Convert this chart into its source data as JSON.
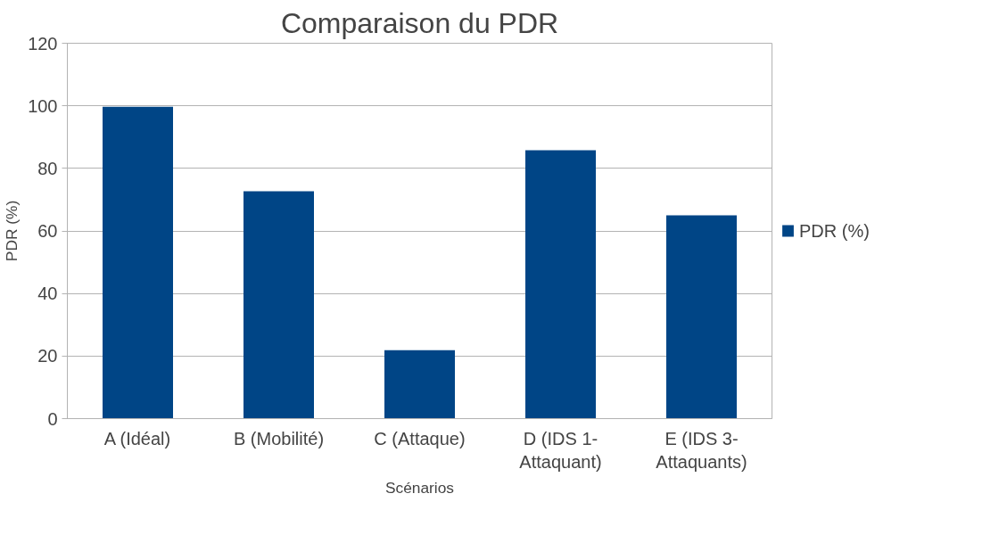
{
  "chart_data": {
    "type": "bar",
    "title": "Comparaison du PDR",
    "xlabel": "Scénarios",
    "ylabel": "PDR (%)",
    "categories": [
      "A (Idéal)",
      "B (Mobilité)",
      "C (Attaque)",
      "D (IDS 1-Attaquant)",
      "E (IDS 3-Attaquants)"
    ],
    "series": [
      {
        "name": "PDR (%)",
        "color": "#004586",
        "values": [
          99.7,
          72.7,
          21.9,
          85.8,
          65.0
        ]
      }
    ],
    "ylim": [
      0,
      120
    ],
    "yticks": [
      0,
      20,
      40,
      60,
      80,
      100,
      120
    ],
    "grid": "y",
    "legend": "right"
  }
}
